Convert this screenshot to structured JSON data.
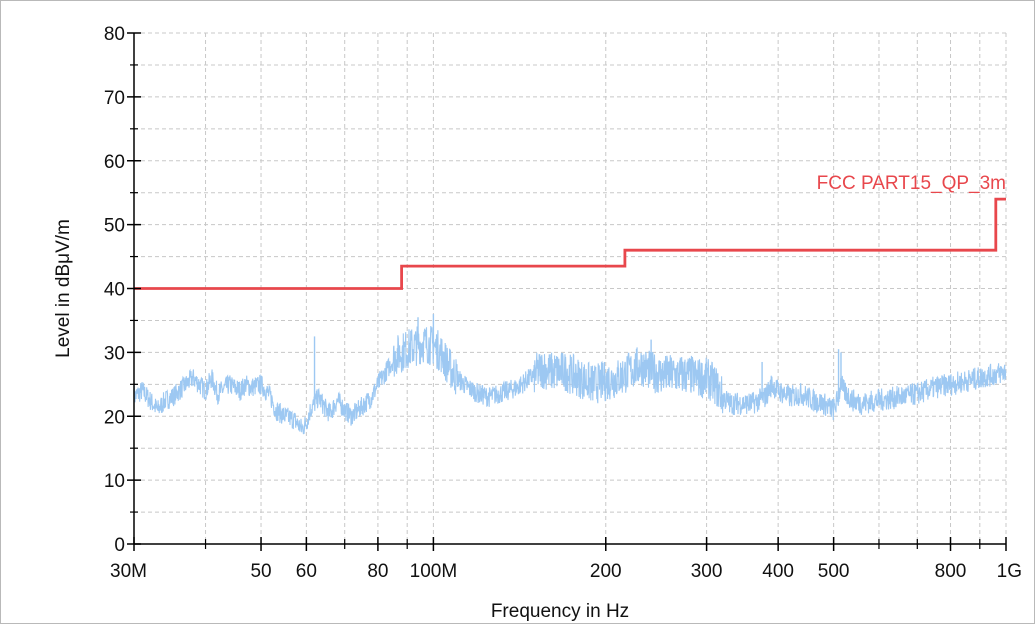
{
  "chart_data": {
    "type": "line",
    "xlabel": "Frequency in Hz",
    "ylabel": "Level in dBμV/m",
    "x_scale": "log",
    "xlim": [
      30,
      1000
    ],
    "ylim": [
      0,
      80
    ],
    "x_tick_values": [
      30,
      50,
      60,
      80,
      100,
      200,
      300,
      400,
      500,
      800,
      1000
    ],
    "x_tick_labels": [
      "30M",
      "50",
      "60",
      "80",
      "100M",
      "200",
      "300",
      "400",
      "500",
      "800",
      "1G"
    ],
    "x_minor_ticks": [
      40,
      70,
      90,
      600,
      700,
      900
    ],
    "y_ticks": [
      0,
      10,
      20,
      30,
      40,
      50,
      60,
      70,
      80
    ],
    "y_tick_labels": [
      "0",
      "10",
      "20",
      "30",
      "40",
      "50",
      "60",
      "70",
      "80"
    ],
    "y_minor_ticks": [
      5,
      15,
      25,
      35,
      45,
      55,
      65,
      75
    ],
    "grid": true,
    "colors": {
      "limit": "#e8474c",
      "measurement": "#9dc8f2",
      "grid": "#c8c8c8",
      "axis": "#000000"
    },
    "series": [
      {
        "name": "FCC PART15_QP_3m",
        "style": "step",
        "points": [
          [
            30,
            40
          ],
          [
            88,
            40
          ],
          [
            88,
            43.5
          ],
          [
            216,
            43.5
          ],
          [
            216,
            46
          ],
          [
            960,
            46
          ],
          [
            960,
            54
          ],
          [
            1000,
            54
          ]
        ]
      },
      {
        "style": "noise",
        "points": [
          [
            30,
            23
          ],
          [
            31,
            24
          ],
          [
            32,
            22.5
          ],
          [
            33,
            21
          ],
          [
            34,
            22.5
          ],
          [
            35,
            23
          ],
          [
            36,
            24
          ],
          [
            37,
            25
          ],
          [
            38,
            26
          ],
          [
            39,
            25
          ],
          [
            40,
            24
          ],
          [
            41,
            26
          ],
          [
            42,
            23.5
          ],
          [
            44,
            25
          ],
          [
            46,
            24
          ],
          [
            47,
            25
          ],
          [
            48,
            24.5
          ],
          [
            50,
            25
          ],
          [
            51,
            24
          ],
          [
            52,
            23
          ],
          [
            53,
            21
          ],
          [
            55,
            20
          ],
          [
            57,
            19.5
          ],
          [
            59,
            18
          ],
          [
            60,
            19
          ],
          [
            61,
            21
          ],
          [
            62,
            22
          ],
          [
            63,
            23
          ],
          [
            64,
            22
          ],
          [
            65,
            21
          ],
          [
            66,
            20.5
          ],
          [
            68,
            22.5
          ],
          [
            70,
            21
          ],
          [
            72,
            20
          ],
          [
            74,
            21
          ],
          [
            76,
            22
          ],
          [
            78,
            23
          ],
          [
            80,
            25
          ],
          [
            82,
            26.5
          ],
          [
            84,
            28
          ],
          [
            86,
            29.5
          ],
          [
            88,
            30
          ],
          [
            90,
            30.5
          ],
          [
            93,
            31
          ],
          [
            96,
            31.5
          ],
          [
            100,
            31
          ],
          [
            103,
            30
          ],
          [
            106,
            28
          ],
          [
            110,
            26
          ],
          [
            115,
            24.5
          ],
          [
            120,
            23.5
          ],
          [
            125,
            23
          ],
          [
            130,
            23.5
          ],
          [
            140,
            24.5
          ],
          [
            150,
            26.5
          ],
          [
            155,
            27.5
          ],
          [
            160,
            27
          ],
          [
            170,
            27
          ],
          [
            180,
            26
          ],
          [
            190,
            25
          ],
          [
            200,
            25.5
          ],
          [
            210,
            26
          ],
          [
            220,
            27
          ],
          [
            230,
            28
          ],
          [
            240,
            27
          ],
          [
            250,
            26.5
          ],
          [
            260,
            26.5
          ],
          [
            270,
            26.5
          ],
          [
            280,
            26.5
          ],
          [
            290,
            26
          ],
          [
            300,
            26
          ],
          [
            310,
            25
          ],
          [
            320,
            23
          ],
          [
            330,
            22
          ],
          [
            340,
            22
          ],
          [
            360,
            22
          ],
          [
            380,
            23
          ],
          [
            390,
            25
          ],
          [
            400,
            24
          ],
          [
            420,
            23
          ],
          [
            440,
            23.5
          ],
          [
            460,
            22.5
          ],
          [
            480,
            22
          ],
          [
            500,
            21
          ],
          [
            510,
            23
          ],
          [
            515,
            25.5
          ],
          [
            520,
            24
          ],
          [
            540,
            22.5
          ],
          [
            560,
            22
          ],
          [
            600,
            22.5
          ],
          [
            650,
            23
          ],
          [
            700,
            23.5
          ],
          [
            750,
            24.5
          ],
          [
            800,
            25
          ],
          [
            850,
            25.5
          ],
          [
            900,
            26
          ],
          [
            950,
            26.5
          ],
          [
            1000,
            27
          ]
        ],
        "spikes": [
          [
            62,
            32.5
          ],
          [
            100,
            36
          ],
          [
            94,
            35.5
          ],
          [
            240,
            32
          ],
          [
            375,
            28.5
          ],
          [
            510,
            30.5
          ],
          [
            515,
            30
          ]
        ]
      }
    ]
  }
}
